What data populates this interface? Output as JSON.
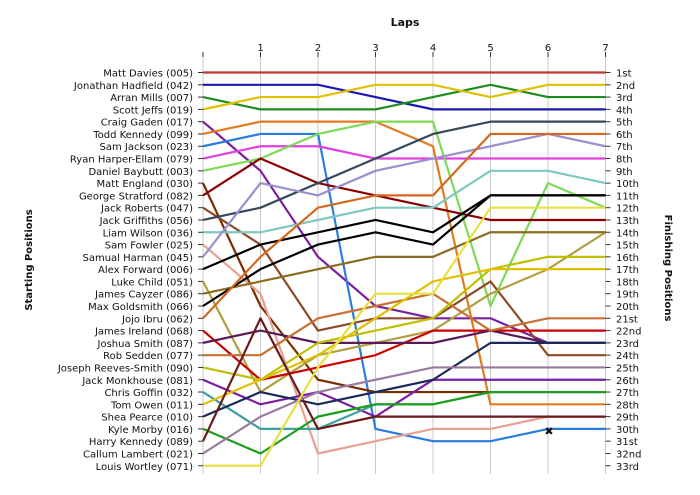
{
  "chart_data": {
    "type": "line",
    "title": "Laps",
    "ylabel_left": "Starting Positions",
    "ylabel_right": "Finishing Positions",
    "x": [
      0,
      1,
      2,
      3,
      4,
      5,
      6,
      7
    ],
    "x_ticks": [
      1,
      2,
      3,
      4,
      5,
      6,
      7
    ],
    "ylim": [
      1,
      33
    ],
    "position_labels": [
      "1st",
      "2nd",
      "3rd",
      "4th",
      "5th",
      "6th",
      "7th",
      "8th",
      "9th",
      "10th",
      "11th",
      "12th",
      "13th",
      "14th",
      "15th",
      "16th",
      "17th",
      "18th",
      "19th",
      "20th",
      "21st",
      "22nd",
      "23rd",
      "24th",
      "25th",
      "26th",
      "27th",
      "28th",
      "29th",
      "30th",
      "31st",
      "32nd",
      "33rd"
    ],
    "grid": true,
    "retired_marker_label": "✖",
    "series": [
      {
        "name": "Matt Davies (005)",
        "color": "#c0392b",
        "values": [
          1,
          1,
          1,
          1,
          1,
          1,
          1,
          1
        ]
      },
      {
        "name": "Jonathan Hadfield (042)",
        "color": "#1a1ab0",
        "values": [
          2,
          2,
          2,
          3,
          4,
          4,
          4,
          4
        ]
      },
      {
        "name": "Arran Mills (007)",
        "color": "#1e8c1e",
        "values": [
          3,
          4,
          4,
          4,
          3,
          2,
          3,
          3
        ]
      },
      {
        "name": "Scott Jeffs (019)",
        "color": "#e0c000",
        "values": [
          4,
          3,
          3,
          2,
          2,
          3,
          2,
          2
        ]
      },
      {
        "name": "Craig Gaden (017)",
        "color": "#7b1fa2",
        "values": [
          5,
          9,
          16,
          20,
          21,
          21,
          23,
          23
        ]
      },
      {
        "name": "Todd Kennedy (099)",
        "color": "#e07b20",
        "values": [
          6,
          5,
          5,
          5,
          7,
          28,
          28,
          28
        ]
      },
      {
        "name": "Sam Jackson (023)",
        "color": "#2a7de0",
        "values": [
          7,
          6,
          6,
          30,
          31,
          31,
          30,
          30
        ]
      },
      {
        "name": "Ryan Harper-Ellam (079)",
        "color": "#e040e0",
        "values": [
          8,
          7,
          7,
          8,
          8,
          8,
          8,
          8
        ]
      },
      {
        "name": "Daniel Baybutt (003)",
        "color": "#7ed957",
        "values": [
          9,
          8,
          6,
          5,
          5,
          20,
          10,
          12
        ]
      },
      {
        "name": "Matt England (030)",
        "color": "#7a2d00",
        "values": [
          10,
          20,
          26,
          27,
          27,
          27,
          27,
          27
        ]
      },
      {
        "name": "George Stratford (082)",
        "color": "#8b0000",
        "values": [
          11,
          8,
          10,
          11,
          12,
          13,
          13,
          13
        ]
      },
      {
        "name": "Jack Roberts (047)",
        "color": "#8d4a2a",
        "values": [
          12,
          15,
          22,
          21,
          21,
          18,
          24,
          24
        ]
      },
      {
        "name": "Jack Griffiths (056)",
        "color": "#34495e",
        "values": [
          13,
          12,
          10,
          8,
          6,
          5,
          5,
          5
        ]
      },
      {
        "name": "Liam Wilson (036)",
        "color": "#7fc8c0",
        "values": [
          14,
          14,
          13,
          12,
          12,
          9,
          9,
          10
        ]
      },
      {
        "name": "Sam Fowler (025)",
        "color": "#e8a090",
        "values": [
          15,
          19,
          32,
          31,
          30,
          30,
          29,
          29
        ]
      },
      {
        "name": "Samual Harman (045)",
        "color": "#9b8fd0",
        "values": [
          16,
          10,
          11,
          9,
          8,
          7,
          6,
          7
        ]
      },
      {
        "name": "Alex Forward (006)",
        "color": "#000000",
        "values": [
          17,
          15,
          14,
          13,
          14,
          11,
          11,
          11
        ]
      },
      {
        "name": "Luke Child (051)",
        "color": "#b0a040",
        "values": [
          18,
          27,
          24,
          23,
          22,
          19,
          17,
          14
        ]
      },
      {
        "name": "James Cayzer (086)",
        "color": "#8c6d1f",
        "values": [
          19,
          18,
          17,
          16,
          16,
          14,
          14,
          14
        ]
      },
      {
        "name": "Max Goldsmith (066)",
        "color": "#000000",
        "values": [
          20,
          17,
          15,
          14,
          15,
          11,
          11,
          11
        ]
      },
      {
        "name": "Jojo Ibru (062)",
        "color": "#d2691e",
        "values": [
          21,
          16,
          12,
          11,
          11,
          6,
          6,
          6
        ]
      },
      {
        "name": "James Ireland (068)",
        "color": "#cc0000",
        "values": [
          22,
          26,
          25,
          24,
          22,
          22,
          22,
          22
        ]
      },
      {
        "name": "Joshua Smith (087)",
        "color": "#5a1a5a",
        "values": [
          23,
          22,
          23,
          23,
          23,
          22,
          23,
          23
        ]
      },
      {
        "name": "Rob Sedden (077)",
        "color": "#c87030",
        "values": [
          24,
          24,
          21,
          20,
          19,
          22,
          21,
          21
        ]
      },
      {
        "name": "Joseph Reeves-Smith (090)",
        "color": "#bfbf00",
        "values": [
          25,
          26,
          23,
          22,
          21,
          17,
          16,
          16
        ]
      },
      {
        "name": "Jack Monkhouse (081)",
        "color": "#7b1fa2",
        "values": [
          26,
          28,
          27,
          29,
          26,
          26,
          26,
          26
        ]
      },
      {
        "name": "Chris Goffin (032)",
        "color": "#3ca0a0",
        "values": [
          27,
          30,
          30,
          28,
          28,
          27,
          27,
          27
        ]
      },
      {
        "name": "Tom Owen (011)",
        "color": "#e0c000",
        "values": [
          28,
          26,
          24,
          21,
          18,
          17,
          17,
          17
        ]
      },
      {
        "name": "Shea Pearce (010)",
        "color": "#1b2a5a",
        "values": [
          29,
          27,
          28,
          27,
          26,
          23,
          23,
          23
        ]
      },
      {
        "name": "Kyle Morby (016)",
        "color": "#1b9e1b",
        "values": [
          30,
          32,
          29,
          28,
          28,
          27,
          27,
          27
        ]
      },
      {
        "name": "Harry Kennedy (089)",
        "color": "#6b1a1a",
        "values": [
          31,
          21,
          30,
          29,
          29,
          29,
          29,
          29
        ]
      },
      {
        "name": "Callum Lambert (021)",
        "color": "#9a7aa0",
        "values": [
          32,
          29,
          27,
          26,
          25,
          25,
          25,
          25
        ]
      },
      {
        "name": "Louis Wortley (071)",
        "color": "#e8e040",
        "values": [
          33,
          33,
          25,
          19,
          19,
          12,
          12,
          12
        ]
      }
    ]
  }
}
